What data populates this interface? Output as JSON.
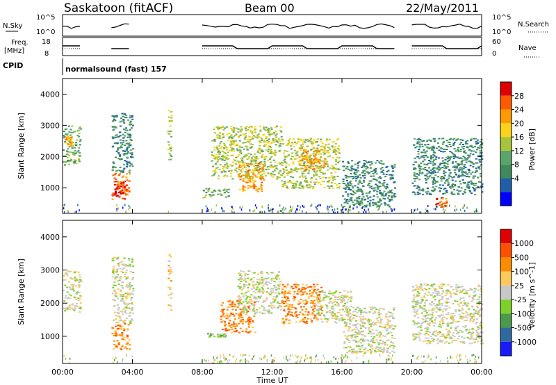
{
  "header": {
    "station": "Saskatoon (fitACF)",
    "beam": "Beam 00",
    "date": "22/May/2011"
  },
  "top_panels": {
    "sky_label": "N.Sky",
    "search_label": "N.Search",
    "freq_label_line1": "Freq.",
    "freq_label_line2": "[MHz]",
    "nave_label": "Nave",
    "cpid_label": "CPID",
    "cpid_text": "normalsound (fast) 157",
    "noise_ticks_left": [
      "10^5",
      "10^0"
    ],
    "noise_ticks_right": [
      "10^5",
      "10^0"
    ],
    "freq_ticks": [
      "18",
      "8"
    ],
    "nave_ticks": [
      "60",
      "0"
    ]
  },
  "colorbars": {
    "power": {
      "label": "Power [dB]",
      "ticks": [
        "28",
        "24",
        "20",
        "16",
        "12",
        "8",
        "4"
      ],
      "colors": [
        "#0000ff",
        "#1f5faa",
        "#3f8a5a",
        "#5aa66a",
        "#a8c43a",
        "#ffd21a",
        "#ff9a00",
        "#ff5a00",
        "#e00000"
      ]
    },
    "velocity": {
      "label": "Velocity [m s^-1]",
      "ticks": [
        "1000",
        "500",
        "100",
        "25",
        "-25",
        "-100",
        "-500",
        "-1000"
      ],
      "colors": [
        "#1a1aff",
        "#2e6aa0",
        "#4a9a4a",
        "#7fd02a",
        "#c8c8c8",
        "#ffc85a",
        "#ff8c00",
        "#ff5000",
        "#e00000"
      ]
    }
  },
  "chart_data": [
    {
      "type": "heatmap",
      "panel": "power",
      "ylabel": "Slant Range [km]",
      "yticks": [
        "4000",
        "3000",
        "2000",
        "1000"
      ],
      "ylim": [
        180,
        4500
      ],
      "xlim": [
        0,
        24
      ],
      "xlabel": "Time UT",
      "xticks": [
        "00:00",
        "04:00",
        "08:00",
        "12:00",
        "16:00",
        "20:00",
        "00:00"
      ],
      "blobs": [
        {
          "t0": 0.0,
          "t1": 1.0,
          "r0": 1750,
          "r1": 3000,
          "level": 3
        },
        {
          "t0": 0.1,
          "t1": 0.5,
          "r0": 2350,
          "r1": 2650,
          "level": 6
        },
        {
          "t0": 2.8,
          "t1": 3.8,
          "r0": 650,
          "r1": 1500,
          "level": 7
        },
        {
          "t0": 2.9,
          "t1": 3.5,
          "r0": 800,
          "r1": 1250,
          "level": 8
        },
        {
          "t0": 2.8,
          "t1": 4.0,
          "r0": 1500,
          "r1": 3400,
          "level": 2
        },
        {
          "t0": 6.0,
          "t1": 6.2,
          "r0": 1800,
          "r1": 3500,
          "level": 4
        },
        {
          "t0": 8.0,
          "t1": 9.5,
          "r0": 700,
          "r1": 1000,
          "level": 3
        },
        {
          "t0": 8.5,
          "t1": 12.5,
          "r0": 1300,
          "r1": 3000,
          "level": 4
        },
        {
          "t0": 10.0,
          "t1": 11.5,
          "r0": 900,
          "r1": 1800,
          "level": 6
        },
        {
          "t0": 12.5,
          "t1": 15.8,
          "r0": 1000,
          "r1": 2600,
          "level": 4
        },
        {
          "t0": 13.5,
          "t1": 15.0,
          "r0": 1600,
          "r1": 2300,
          "level": 6
        },
        {
          "t0": 16.0,
          "t1": 19.0,
          "r0": 400,
          "r1": 1900,
          "level": 2
        },
        {
          "t0": 20.0,
          "t1": 24.0,
          "r0": 800,
          "r1": 2600,
          "level": 2
        },
        {
          "t0": 21.3,
          "t1": 22.0,
          "r0": 400,
          "r1": 700,
          "level": 7
        }
      ]
    },
    {
      "type": "heatmap",
      "panel": "velocity",
      "ylabel": "Slant Range [km]",
      "yticks": [
        "4000",
        "3000",
        "2000",
        "1000"
      ],
      "ylim": [
        180,
        4500
      ],
      "xlim": [
        0,
        24
      ],
      "xlabel": "Time UT",
      "xticks": [
        "00:00",
        "04:00",
        "08:00",
        "12:00",
        "16:00",
        "20:00",
        "00:00"
      ],
      "blobs": [
        {
          "t0": 0.0,
          "t1": 1.0,
          "r0": 1750,
          "r1": 3000,
          "level": 4
        },
        {
          "t0": 2.8,
          "t1": 3.8,
          "r0": 600,
          "r1": 1400,
          "level": 6
        },
        {
          "t0": 2.8,
          "t1": 4.0,
          "r0": 1400,
          "r1": 3400,
          "level": 4
        },
        {
          "t0": 6.0,
          "t1": 6.2,
          "r0": 1800,
          "r1": 3500,
          "level": 5
        },
        {
          "t0": 8.2,
          "t1": 9.3,
          "r0": 1000,
          "r1": 1100,
          "level": 3
        },
        {
          "t0": 9.0,
          "t1": 11.0,
          "r0": 1100,
          "r1": 2100,
          "level": 6
        },
        {
          "t0": 10.0,
          "t1": 12.5,
          "r0": 1700,
          "r1": 3000,
          "level": 4
        },
        {
          "t0": 12.5,
          "t1": 14.8,
          "r0": 1400,
          "r1": 2600,
          "level": 6
        },
        {
          "t0": 14.5,
          "t1": 16.5,
          "r0": 1400,
          "r1": 2400,
          "level": 4
        },
        {
          "t0": 16.0,
          "t1": 19.0,
          "r0": 500,
          "r1": 1900,
          "level": 4
        },
        {
          "t0": 20.0,
          "t1": 24.0,
          "r0": 800,
          "r1": 2600,
          "level": 4
        }
      ]
    }
  ],
  "gaps_hours": [
    [
      1.0,
      2.8
    ],
    [
      4.0,
      6.0
    ],
    [
      6.2,
      8.0
    ],
    [
      19.0,
      20.0
    ]
  ]
}
